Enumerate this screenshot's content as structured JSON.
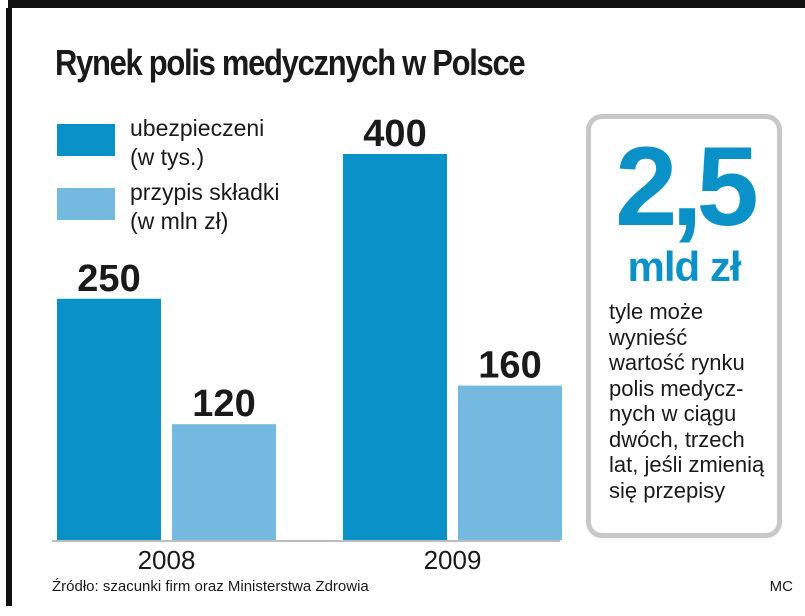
{
  "title": "Rynek polis medycznych w Polsce",
  "chart_data": {
    "type": "bar",
    "categories": [
      "2008",
      "2009"
    ],
    "series": [
      {
        "name": "ubezpieczeni\n(w tys.)",
        "values": [
          250,
          400
        ],
        "color": "#0a92c8"
      },
      {
        "name": "przypis składki\n(w mln zł)",
        "values": [
          120,
          160
        ],
        "color": "#73b9e0"
      }
    ],
    "data_labels": [
      [
        "250",
        "400"
      ],
      [
        "120",
        "160"
      ]
    ],
    "legend_position": "top-left",
    "grid": false
  },
  "legend": [
    {
      "line1": "ubezpieczeni",
      "line2": "(w tys.)",
      "color": "#0a92c8"
    },
    {
      "line1": "przypis składki",
      "line2": "(w mln zł)",
      "color": "#73b9e0"
    }
  ],
  "highlight": {
    "value": "2,5",
    "unit": "mld zł",
    "description_lines": [
      "tyle może",
      "wynieść",
      "wartość rynku",
      "polis medycz-",
      "nych w ciągu",
      "dwóch, trzech",
      "lat, jeśli zmienią",
      "się przepisy"
    ],
    "accent_color": "#0a92c8"
  },
  "source": "Źródło: szacunki firm oraz Ministerstwa Zdrowia",
  "credit": "MC"
}
